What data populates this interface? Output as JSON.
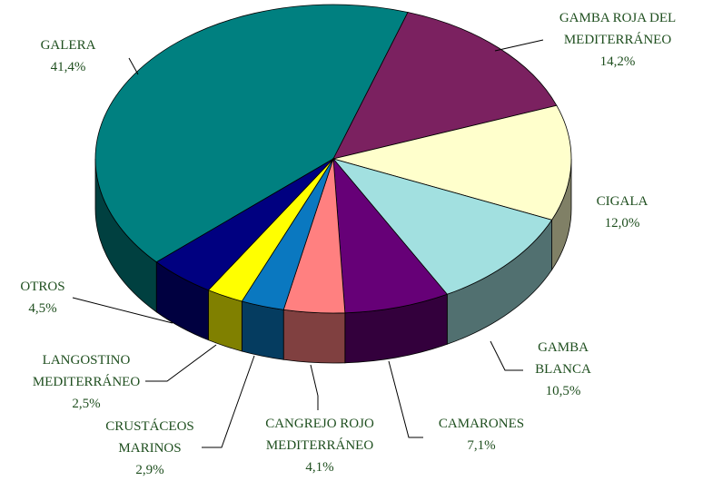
{
  "chart_data": {
    "type": "pie3d",
    "categories": [
      "GALERA",
      "GAMBA ROJA DEL MEDITERRÁNEO",
      "CIGALA",
      "GAMBA BLANCA",
      "CAMARONES",
      "CANGREJO ROJO MEDITERRÁNEO",
      "CRUSTÁCEOS MARINOS",
      "LANGOSTINO MEDITERRÁNEO",
      "OTROS"
    ],
    "values": [
      41.4,
      14.2,
      12.0,
      10.5,
      7.1,
      4.1,
      2.9,
      2.5,
      4.5
    ],
    "value_labels": [
      "41,4%",
      "14,2%",
      "12,0%",
      "10,5%",
      "7,1%",
      "4,1%",
      "2,9%",
      "2,5%",
      "4,5%"
    ],
    "colors": [
      "#008080",
      "#7b2160",
      "#ffffcc",
      "#a2e0e0",
      "#660077",
      "#ff8080",
      "#0a78c0",
      "#ffff00",
      "#000080"
    ]
  }
}
